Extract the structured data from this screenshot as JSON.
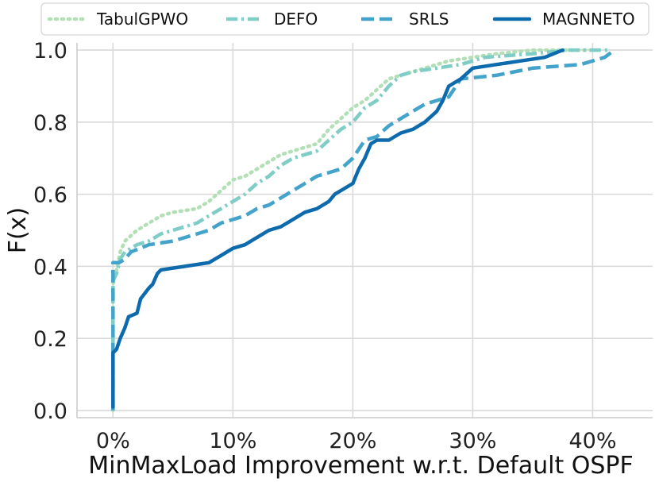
{
  "chart_data": {
    "type": "line",
    "title": "",
    "xlabel": "MinMaxLoad Improvement w.r.t. Default OSPF",
    "ylabel": "F(x)",
    "xlim": [
      -3,
      45
    ],
    "ylim": [
      -0.02,
      1.02
    ],
    "x_ticks": [
      0,
      10,
      20,
      30,
      40
    ],
    "x_tick_labels": [
      "0%",
      "10%",
      "20%",
      "30%",
      "40%"
    ],
    "y_ticks": [
      0.0,
      0.2,
      0.4,
      0.6,
      0.8,
      1.0
    ],
    "y_tick_labels": [
      "0.0",
      "0.2",
      "0.4",
      "0.6",
      "0.8",
      "1.0"
    ],
    "grid": true,
    "legend_position": "top",
    "series": [
      {
        "name": "TabulGPWO",
        "color": "#b2dfb6",
        "dash": "dotted",
        "points": [
          [
            0.0,
            0.0
          ],
          [
            0.0,
            0.35
          ],
          [
            0.3,
            0.39
          ],
          [
            0.6,
            0.44
          ],
          [
            1.0,
            0.47
          ],
          [
            2.0,
            0.5
          ],
          [
            3.0,
            0.52
          ],
          [
            4.0,
            0.54
          ],
          [
            5.0,
            0.55
          ],
          [
            7.0,
            0.56
          ],
          [
            8.0,
            0.58
          ],
          [
            9.0,
            0.61
          ],
          [
            10.0,
            0.64
          ],
          [
            11.0,
            0.65
          ],
          [
            12.0,
            0.67
          ],
          [
            13.0,
            0.69
          ],
          [
            14.0,
            0.71
          ],
          [
            15.0,
            0.72
          ],
          [
            16.0,
            0.73
          ],
          [
            17.0,
            0.74
          ],
          [
            18.0,
            0.78
          ],
          [
            19.0,
            0.81
          ],
          [
            20.0,
            0.84
          ],
          [
            21.0,
            0.86
          ],
          [
            22.0,
            0.89
          ],
          [
            23.0,
            0.92
          ],
          [
            24.0,
            0.93
          ],
          [
            25.0,
            0.94
          ],
          [
            26.0,
            0.95
          ],
          [
            28.0,
            0.97
          ],
          [
            30.0,
            0.98
          ],
          [
            32.0,
            0.99
          ],
          [
            35.0,
            1.0
          ],
          [
            40.0,
            1.0
          ]
        ]
      },
      {
        "name": "DEFO",
        "color": "#7fcdc6",
        "dash": "dashdot",
        "points": [
          [
            0.0,
            0.0
          ],
          [
            0.0,
            0.36
          ],
          [
            0.3,
            0.38
          ],
          [
            0.6,
            0.42
          ],
          [
            1.0,
            0.44
          ],
          [
            2.0,
            0.46
          ],
          [
            3.0,
            0.47
          ],
          [
            4.0,
            0.49
          ],
          [
            5.0,
            0.5
          ],
          [
            6.0,
            0.51
          ],
          [
            7.0,
            0.52
          ],
          [
            8.0,
            0.54
          ],
          [
            9.0,
            0.56
          ],
          [
            10.0,
            0.58
          ],
          [
            11.0,
            0.6
          ],
          [
            12.0,
            0.63
          ],
          [
            13.0,
            0.65
          ],
          [
            14.0,
            0.68
          ],
          [
            15.0,
            0.7
          ],
          [
            16.0,
            0.71
          ],
          [
            17.0,
            0.72
          ],
          [
            18.0,
            0.75
          ],
          [
            19.0,
            0.78
          ],
          [
            20.0,
            0.8
          ],
          [
            21.0,
            0.84
          ],
          [
            22.0,
            0.86
          ],
          [
            23.0,
            0.9
          ],
          [
            24.0,
            0.93
          ],
          [
            25.0,
            0.94
          ],
          [
            27.0,
            0.95
          ],
          [
            29.0,
            0.96
          ],
          [
            31.0,
            0.98
          ],
          [
            35.0,
            0.99
          ],
          [
            38.0,
            1.0
          ],
          [
            41.5,
            1.0
          ]
        ]
      },
      {
        "name": "SRLS",
        "color": "#44a3cb",
        "dash": "dashed",
        "points": [
          [
            0.0,
            0.0
          ],
          [
            0.0,
            0.15
          ],
          [
            0.0,
            0.41
          ],
          [
            0.5,
            0.41
          ],
          [
            1.0,
            0.42
          ],
          [
            1.5,
            0.44
          ],
          [
            3.0,
            0.46
          ],
          [
            5.0,
            0.47
          ],
          [
            6.0,
            0.48
          ],
          [
            8.0,
            0.5
          ],
          [
            9.0,
            0.52
          ],
          [
            10.0,
            0.53
          ],
          [
            11.0,
            0.54
          ],
          [
            12.0,
            0.56
          ],
          [
            13.0,
            0.57
          ],
          [
            14.0,
            0.59
          ],
          [
            15.0,
            0.61
          ],
          [
            16.0,
            0.63
          ],
          [
            17.0,
            0.65
          ],
          [
            18.0,
            0.66
          ],
          [
            19.0,
            0.67
          ],
          [
            20.0,
            0.7
          ],
          [
            21.0,
            0.75
          ],
          [
            22.0,
            0.76
          ],
          [
            23.0,
            0.79
          ],
          [
            24.0,
            0.81
          ],
          [
            25.0,
            0.83
          ],
          [
            26.0,
            0.85
          ],
          [
            27.0,
            0.86
          ],
          [
            28.0,
            0.87
          ],
          [
            29.0,
            0.92
          ],
          [
            32.0,
            0.93
          ],
          [
            35.0,
            0.95
          ],
          [
            39.0,
            0.96
          ],
          [
            41.0,
            0.98
          ],
          [
            41.8,
            1.0
          ]
        ]
      },
      {
        "name": "MAGNNETO",
        "color": "#0c6aad",
        "dash": "solid",
        "points": [
          [
            0.0,
            0.01
          ],
          [
            0.0,
            0.1
          ],
          [
            0.0,
            0.16
          ],
          [
            0.3,
            0.17
          ],
          [
            0.6,
            0.2
          ],
          [
            1.0,
            0.23
          ],
          [
            1.3,
            0.26
          ],
          [
            2.0,
            0.27
          ],
          [
            2.3,
            0.31
          ],
          [
            3.0,
            0.34
          ],
          [
            3.3,
            0.35
          ],
          [
            3.7,
            0.38
          ],
          [
            4.0,
            0.39
          ],
          [
            6.0,
            0.4
          ],
          [
            8.0,
            0.41
          ],
          [
            9.0,
            0.43
          ],
          [
            10.0,
            0.45
          ],
          [
            11.0,
            0.46
          ],
          [
            12.0,
            0.48
          ],
          [
            13.0,
            0.5
          ],
          [
            14.0,
            0.51
          ],
          [
            15.0,
            0.53
          ],
          [
            16.0,
            0.55
          ],
          [
            17.0,
            0.56
          ],
          [
            18.0,
            0.58
          ],
          [
            18.5,
            0.6
          ],
          [
            19.0,
            0.61
          ],
          [
            20.0,
            0.63
          ],
          [
            20.5,
            0.67
          ],
          [
            21.0,
            0.7
          ],
          [
            21.5,
            0.74
          ],
          [
            22.0,
            0.75
          ],
          [
            23.0,
            0.75
          ],
          [
            24.0,
            0.77
          ],
          [
            25.0,
            0.78
          ],
          [
            26.0,
            0.8
          ],
          [
            27.0,
            0.83
          ],
          [
            27.5,
            0.86
          ],
          [
            28.0,
            0.9
          ],
          [
            29.0,
            0.92
          ],
          [
            30.0,
            0.95
          ],
          [
            32.0,
            0.96
          ],
          [
            34.0,
            0.97
          ],
          [
            36.0,
            0.98
          ],
          [
            37.5,
            1.0
          ]
        ]
      }
    ]
  }
}
